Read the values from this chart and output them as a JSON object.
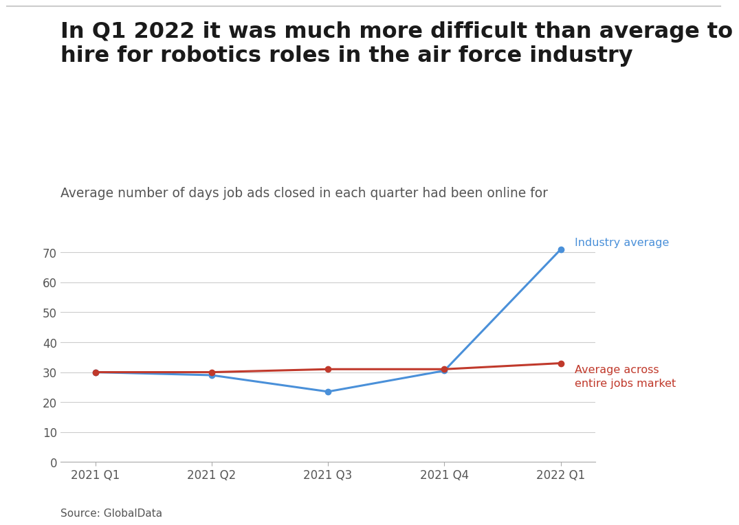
{
  "title_line1": "In Q1 2022 it was much more difficult than average to",
  "title_line2": "hire for robotics roles in the air force industry",
  "subtitle": "Average number of days job ads closed in each quarter had been online for",
  "source": "Source: GlobalData",
  "x_labels": [
    "2021 Q1",
    "2021 Q2",
    "2021 Q3",
    "2021 Q4",
    "2022 Q1"
  ],
  "industry_avg": [
    30,
    29,
    23.5,
    30.5,
    71
  ],
  "jobs_market_avg": [
    30,
    30,
    31,
    31,
    33
  ],
  "industry_color": "#4a90d9",
  "jobs_market_color": "#c0392b",
  "industry_label": "Industry average",
  "jobs_market_label_line1": "Average across",
  "jobs_market_label_line2": "entire jobs market",
  "ylim": [
    0,
    75
  ],
  "yticks": [
    0,
    10,
    20,
    30,
    40,
    50,
    60,
    70
  ],
  "background_color": "#ffffff",
  "title_color": "#1a1a1a",
  "subtitle_color": "#555555",
  "axis_color": "#cccccc",
  "tick_color": "#555555",
  "marker_size": 6,
  "line_width": 2.2,
  "title_fontsize": 23,
  "subtitle_fontsize": 13.5,
  "tick_fontsize": 12,
  "label_fontsize": 11.5,
  "source_fontsize": 11
}
